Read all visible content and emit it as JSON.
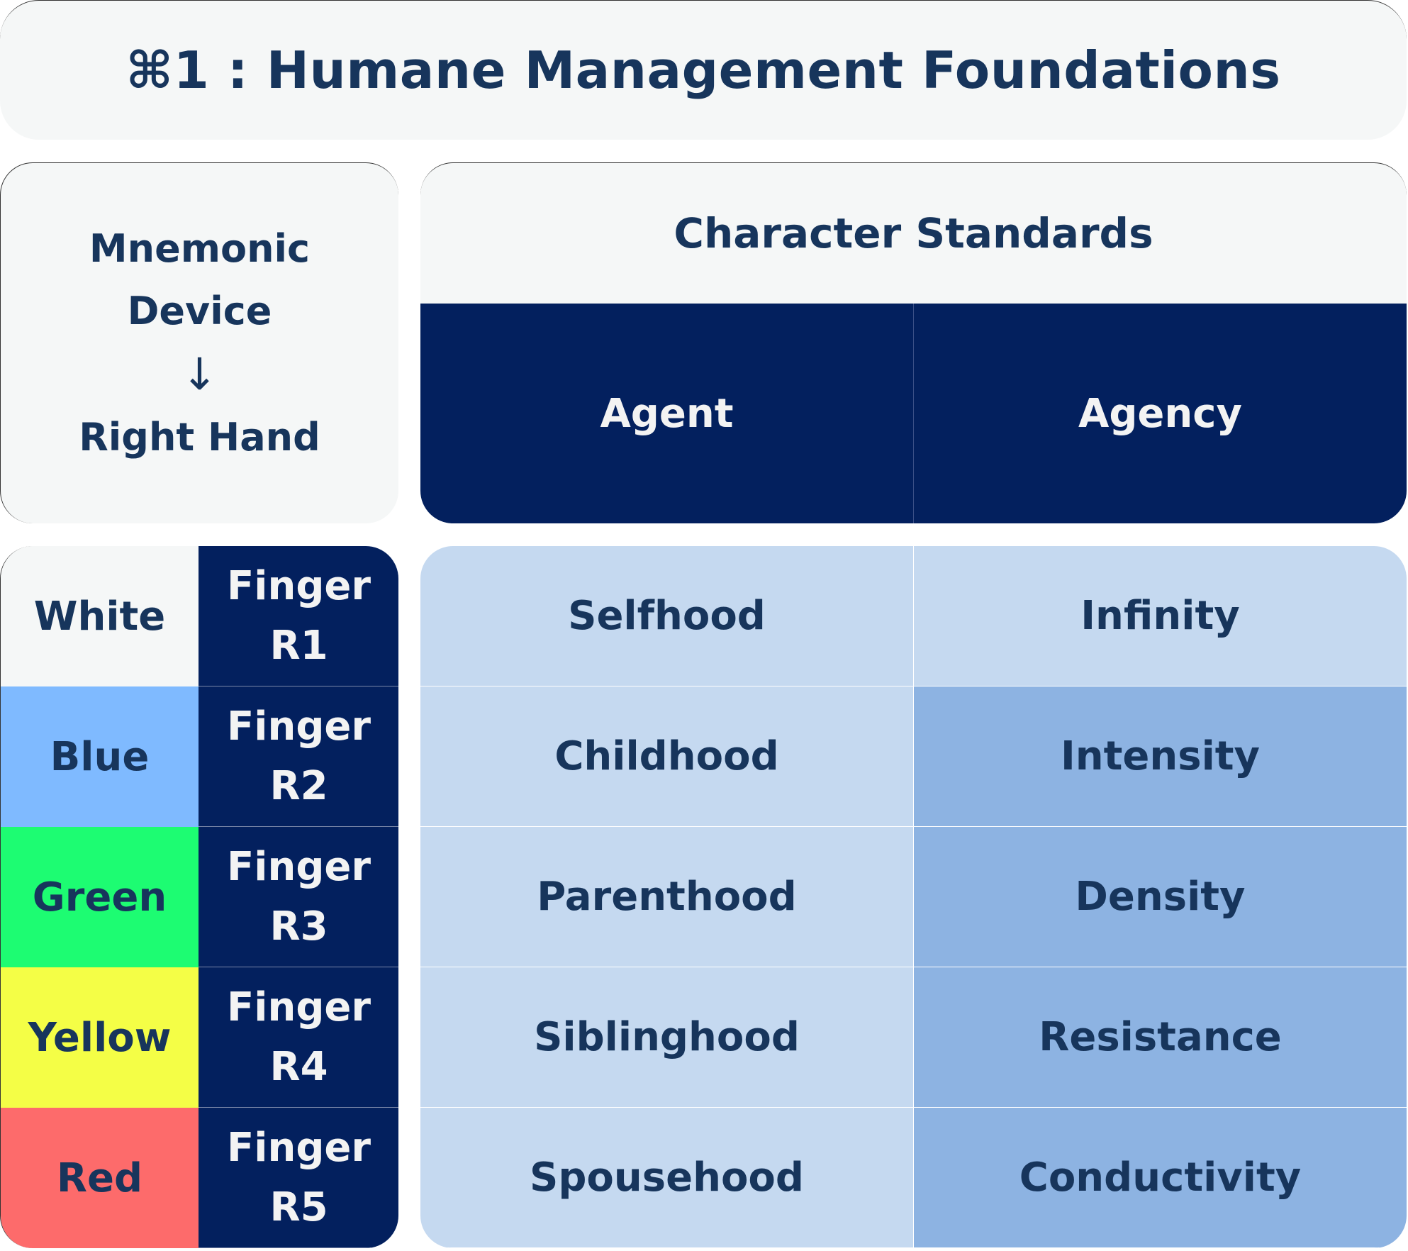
{
  "title": "⌘1 : Humane Management Foundations",
  "mnemonic": {
    "line1": "Mnemonic",
    "line2": "Device",
    "arrow": "↓",
    "line3": "Right Hand"
  },
  "standards": {
    "title": "Character Standards",
    "columns": [
      "Agent",
      "Agency"
    ]
  },
  "rows": [
    {
      "color": "White",
      "color_hex": "#f5f7f7",
      "finger": "Finger",
      "id": "R1",
      "agent": "Selfhood",
      "agency": "Infinity"
    },
    {
      "color": "Blue",
      "color_hex": "#7fbaff",
      "finger": "Finger",
      "id": "R2",
      "agent": "Childhood",
      "agency": "Intensity"
    },
    {
      "color": "Green",
      "color_hex": "#1dfc72",
      "finger": "Finger",
      "id": "R3",
      "agent": "Parenthood",
      "agency": "Density"
    },
    {
      "color": "Yellow",
      "color_hex": "#f4fe46",
      "finger": "Finger",
      "id": "R4",
      "agent": "Siblinghood",
      "agency": "Resistance"
    },
    {
      "color": "Red",
      "color_hex": "#fd6b6b",
      "finger": "Finger",
      "id": "R5",
      "agent": "Spousehood",
      "agency": "Conductivity"
    }
  ],
  "cell_colors": {
    "agent": "#c5d9f0",
    "agency_first": "#c5d9f0",
    "agency_rest": "#8db3e2",
    "header": "#03205e"
  }
}
